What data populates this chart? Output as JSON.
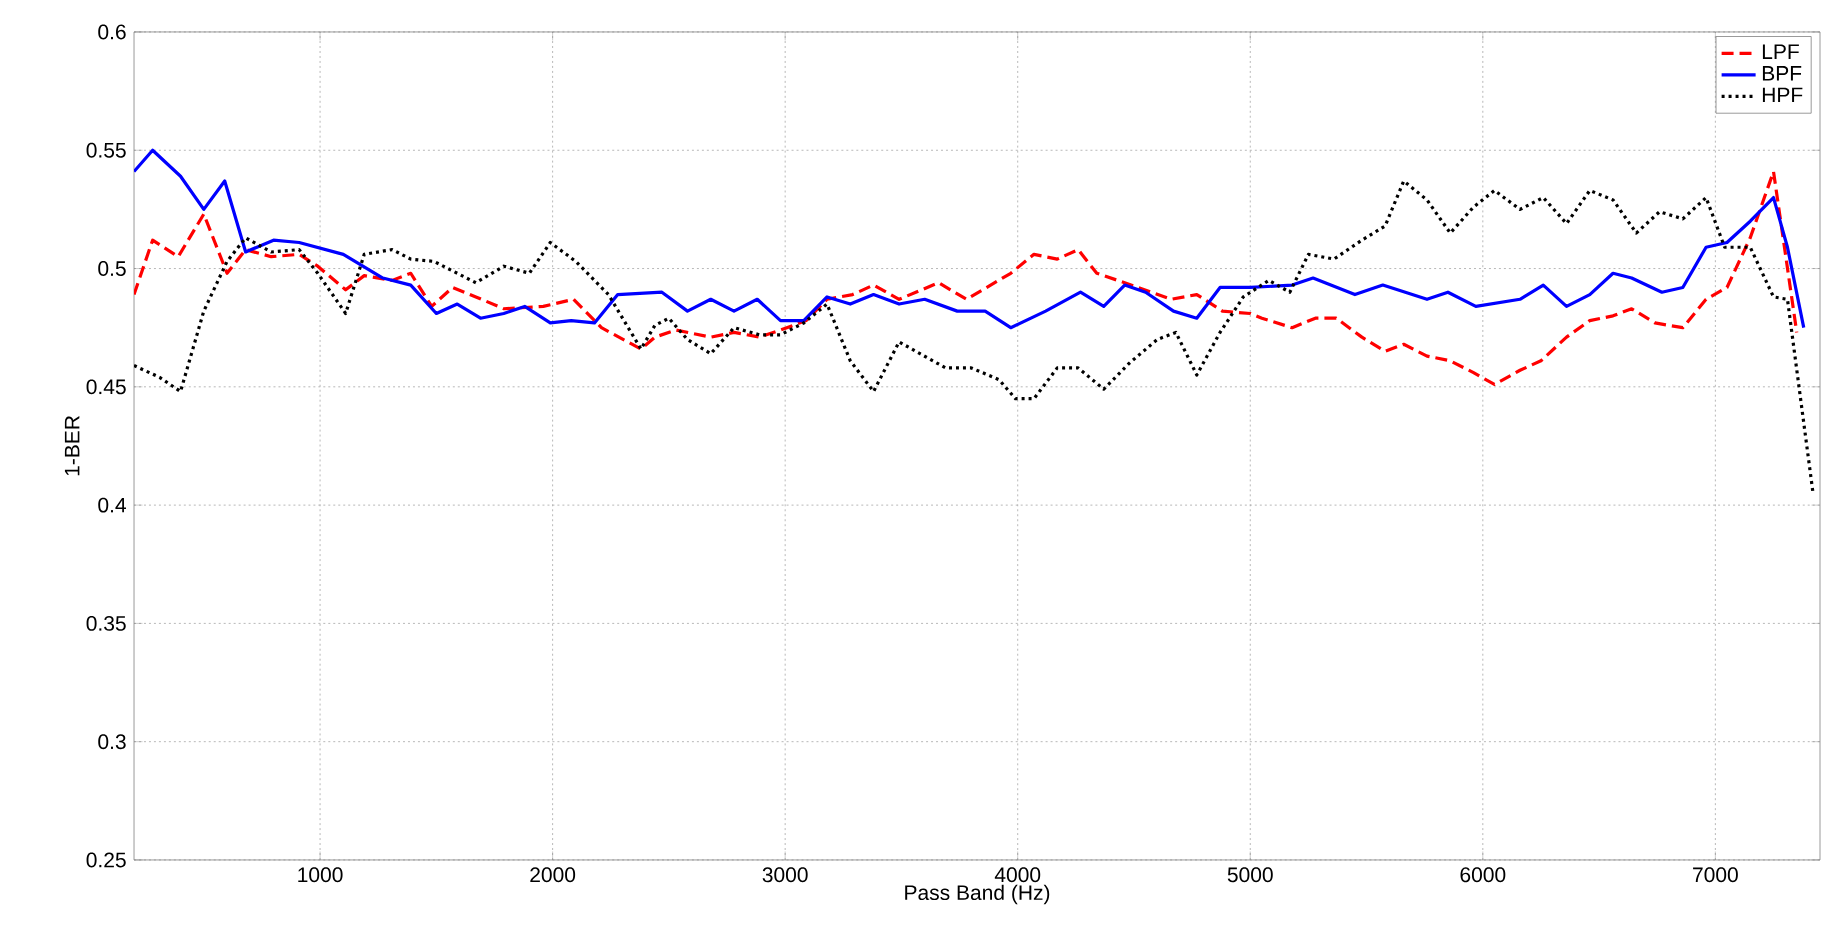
{
  "chart_data": {
    "type": "line",
    "xlabel": "Pass Band (Hz)",
    "ylabel": "1-BER",
    "xlim": [
      200,
      7450
    ],
    "ylim": [
      0.25,
      0.6
    ],
    "xticks": [
      1000,
      2000,
      3000,
      4000,
      5000,
      6000,
      7000
    ],
    "yticks": [
      0.25,
      0.3,
      0.35,
      0.4,
      0.45,
      0.5,
      0.55,
      0.6
    ],
    "grid": true,
    "legend": "top right",
    "marker": "none",
    "series": [
      {
        "name": "LPF",
        "color": "#ff0000",
        "line_style": "dashed",
        "x": [
          200,
          280,
          390,
          500,
          600,
          680,
          790,
          910,
          990,
          1110,
          1190,
          1310,
          1390,
          1480,
          1570,
          1670,
          1790,
          1960,
          2090,
          2210,
          2380,
          2440,
          2530,
          2680,
          2780,
          2890,
          2980,
          3090,
          3180,
          3290,
          3380,
          3490,
          3660,
          3780,
          3970,
          4070,
          4170,
          4260,
          4340,
          4460,
          4660,
          4770,
          4880,
          5000,
          5050,
          5180,
          5280,
          5370,
          5480,
          5580,
          5660,
          5760,
          5860,
          5960,
          6050,
          6160,
          6250,
          6360,
          6460,
          6560,
          6640,
          6740,
          6860,
          6960,
          7050,
          7150,
          7250,
          7350
        ],
        "values": [
          0.489,
          0.512,
          0.505,
          0.523,
          0.498,
          0.508,
          0.505,
          0.506,
          0.501,
          0.491,
          0.497,
          0.495,
          0.498,
          0.484,
          0.492,
          0.488,
          0.483,
          0.484,
          0.487,
          0.475,
          0.466,
          0.471,
          0.474,
          0.471,
          0.473,
          0.471,
          0.474,
          0.478,
          0.487,
          0.489,
          0.493,
          0.487,
          0.494,
          0.487,
          0.498,
          0.506,
          0.504,
          0.508,
          0.498,
          0.494,
          0.487,
          0.489,
          0.482,
          0.481,
          0.479,
          0.475,
          0.479,
          0.479,
          0.471,
          0.465,
          0.468,
          0.463,
          0.461,
          0.456,
          0.451,
          0.457,
          0.461,
          0.471,
          0.478,
          0.48,
          0.483,
          0.477,
          0.475,
          0.487,
          0.492,
          0.513,
          0.541,
          0.473
        ]
      },
      {
        "name": "BPF",
        "color": "#0000ff",
        "line_style": "solid",
        "x": [
          200,
          280,
          400,
          500,
          590,
          680,
          800,
          910,
          1100,
          1270,
          1390,
          1500,
          1590,
          1690,
          1790,
          1880,
          1990,
          2080,
          2180,
          2280,
          2470,
          2580,
          2680,
          2780,
          2880,
          2980,
          3080,
          3180,
          3280,
          3380,
          3490,
          3600,
          3740,
          3860,
          3970,
          4120,
          4270,
          4370,
          4460,
          4550,
          4670,
          4770,
          4870,
          5000,
          5180,
          5270,
          5450,
          5570,
          5760,
          5850,
          5970,
          6160,
          6260,
          6360,
          6460,
          6560,
          6640,
          6770,
          6860,
          6960,
          7050,
          7150,
          7250,
          7310,
          7380
        ],
        "values": [
          0.541,
          0.55,
          0.539,
          0.525,
          0.537,
          0.507,
          0.512,
          0.511,
          0.506,
          0.496,
          0.493,
          0.481,
          0.485,
          0.479,
          0.481,
          0.484,
          0.477,
          0.478,
          0.477,
          0.489,
          0.49,
          0.482,
          0.487,
          0.482,
          0.487,
          0.478,
          0.478,
          0.488,
          0.485,
          0.489,
          0.485,
          0.487,
          0.482,
          0.482,
          0.475,
          0.482,
          0.49,
          0.484,
          0.493,
          0.49,
          0.482,
          0.479,
          0.492,
          0.492,
          0.493,
          0.496,
          0.489,
          0.493,
          0.487,
          0.49,
          0.484,
          0.487,
          0.493,
          0.484,
          0.489,
          0.498,
          0.496,
          0.49,
          0.492,
          0.509,
          0.511,
          0.52,
          0.53,
          0.509,
          0.475
        ]
      },
      {
        "name": "HPF",
        "color": "#000000",
        "line_style": "dotted",
        "x": [
          200,
          310,
          400,
          500,
          600,
          680,
          790,
          910,
          990,
          1110,
          1190,
          1310,
          1390,
          1490,
          1670,
          1790,
          1900,
          1990,
          2100,
          2240,
          2380,
          2440,
          2500,
          2580,
          2680,
          2780,
          2890,
          2980,
          3080,
          3180,
          3280,
          3380,
          3490,
          3580,
          3690,
          3800,
          3920,
          3990,
          4070,
          4170,
          4260,
          4370,
          4480,
          4600,
          4680,
          4770,
          4870,
          4970,
          5080,
          5170,
          5250,
          5360,
          5480,
          5580,
          5660,
          5760,
          5860,
          5960,
          6050,
          6160,
          6260,
          6360,
          6460,
          6560,
          6660,
          6760,
          6860,
          6960,
          7040,
          7150,
          7250,
          7310,
          7420
        ],
        "values": [
          0.459,
          0.454,
          0.448,
          0.482,
          0.503,
          0.513,
          0.507,
          0.508,
          0.498,
          0.481,
          0.506,
          0.508,
          0.504,
          0.503,
          0.494,
          0.501,
          0.498,
          0.511,
          0.503,
          0.489,
          0.466,
          0.476,
          0.479,
          0.47,
          0.464,
          0.475,
          0.472,
          0.472,
          0.477,
          0.485,
          0.461,
          0.448,
          0.469,
          0.464,
          0.458,
          0.458,
          0.453,
          0.445,
          0.445,
          0.458,
          0.458,
          0.449,
          0.46,
          0.47,
          0.473,
          0.455,
          0.473,
          0.488,
          0.495,
          0.49,
          0.506,
          0.504,
          0.512,
          0.518,
          0.537,
          0.529,
          0.515,
          0.526,
          0.533,
          0.525,
          0.53,
          0.519,
          0.533,
          0.529,
          0.515,
          0.524,
          0.521,
          0.53,
          0.509,
          0.509,
          0.488,
          0.487,
          0.405
        ]
      }
    ]
  }
}
